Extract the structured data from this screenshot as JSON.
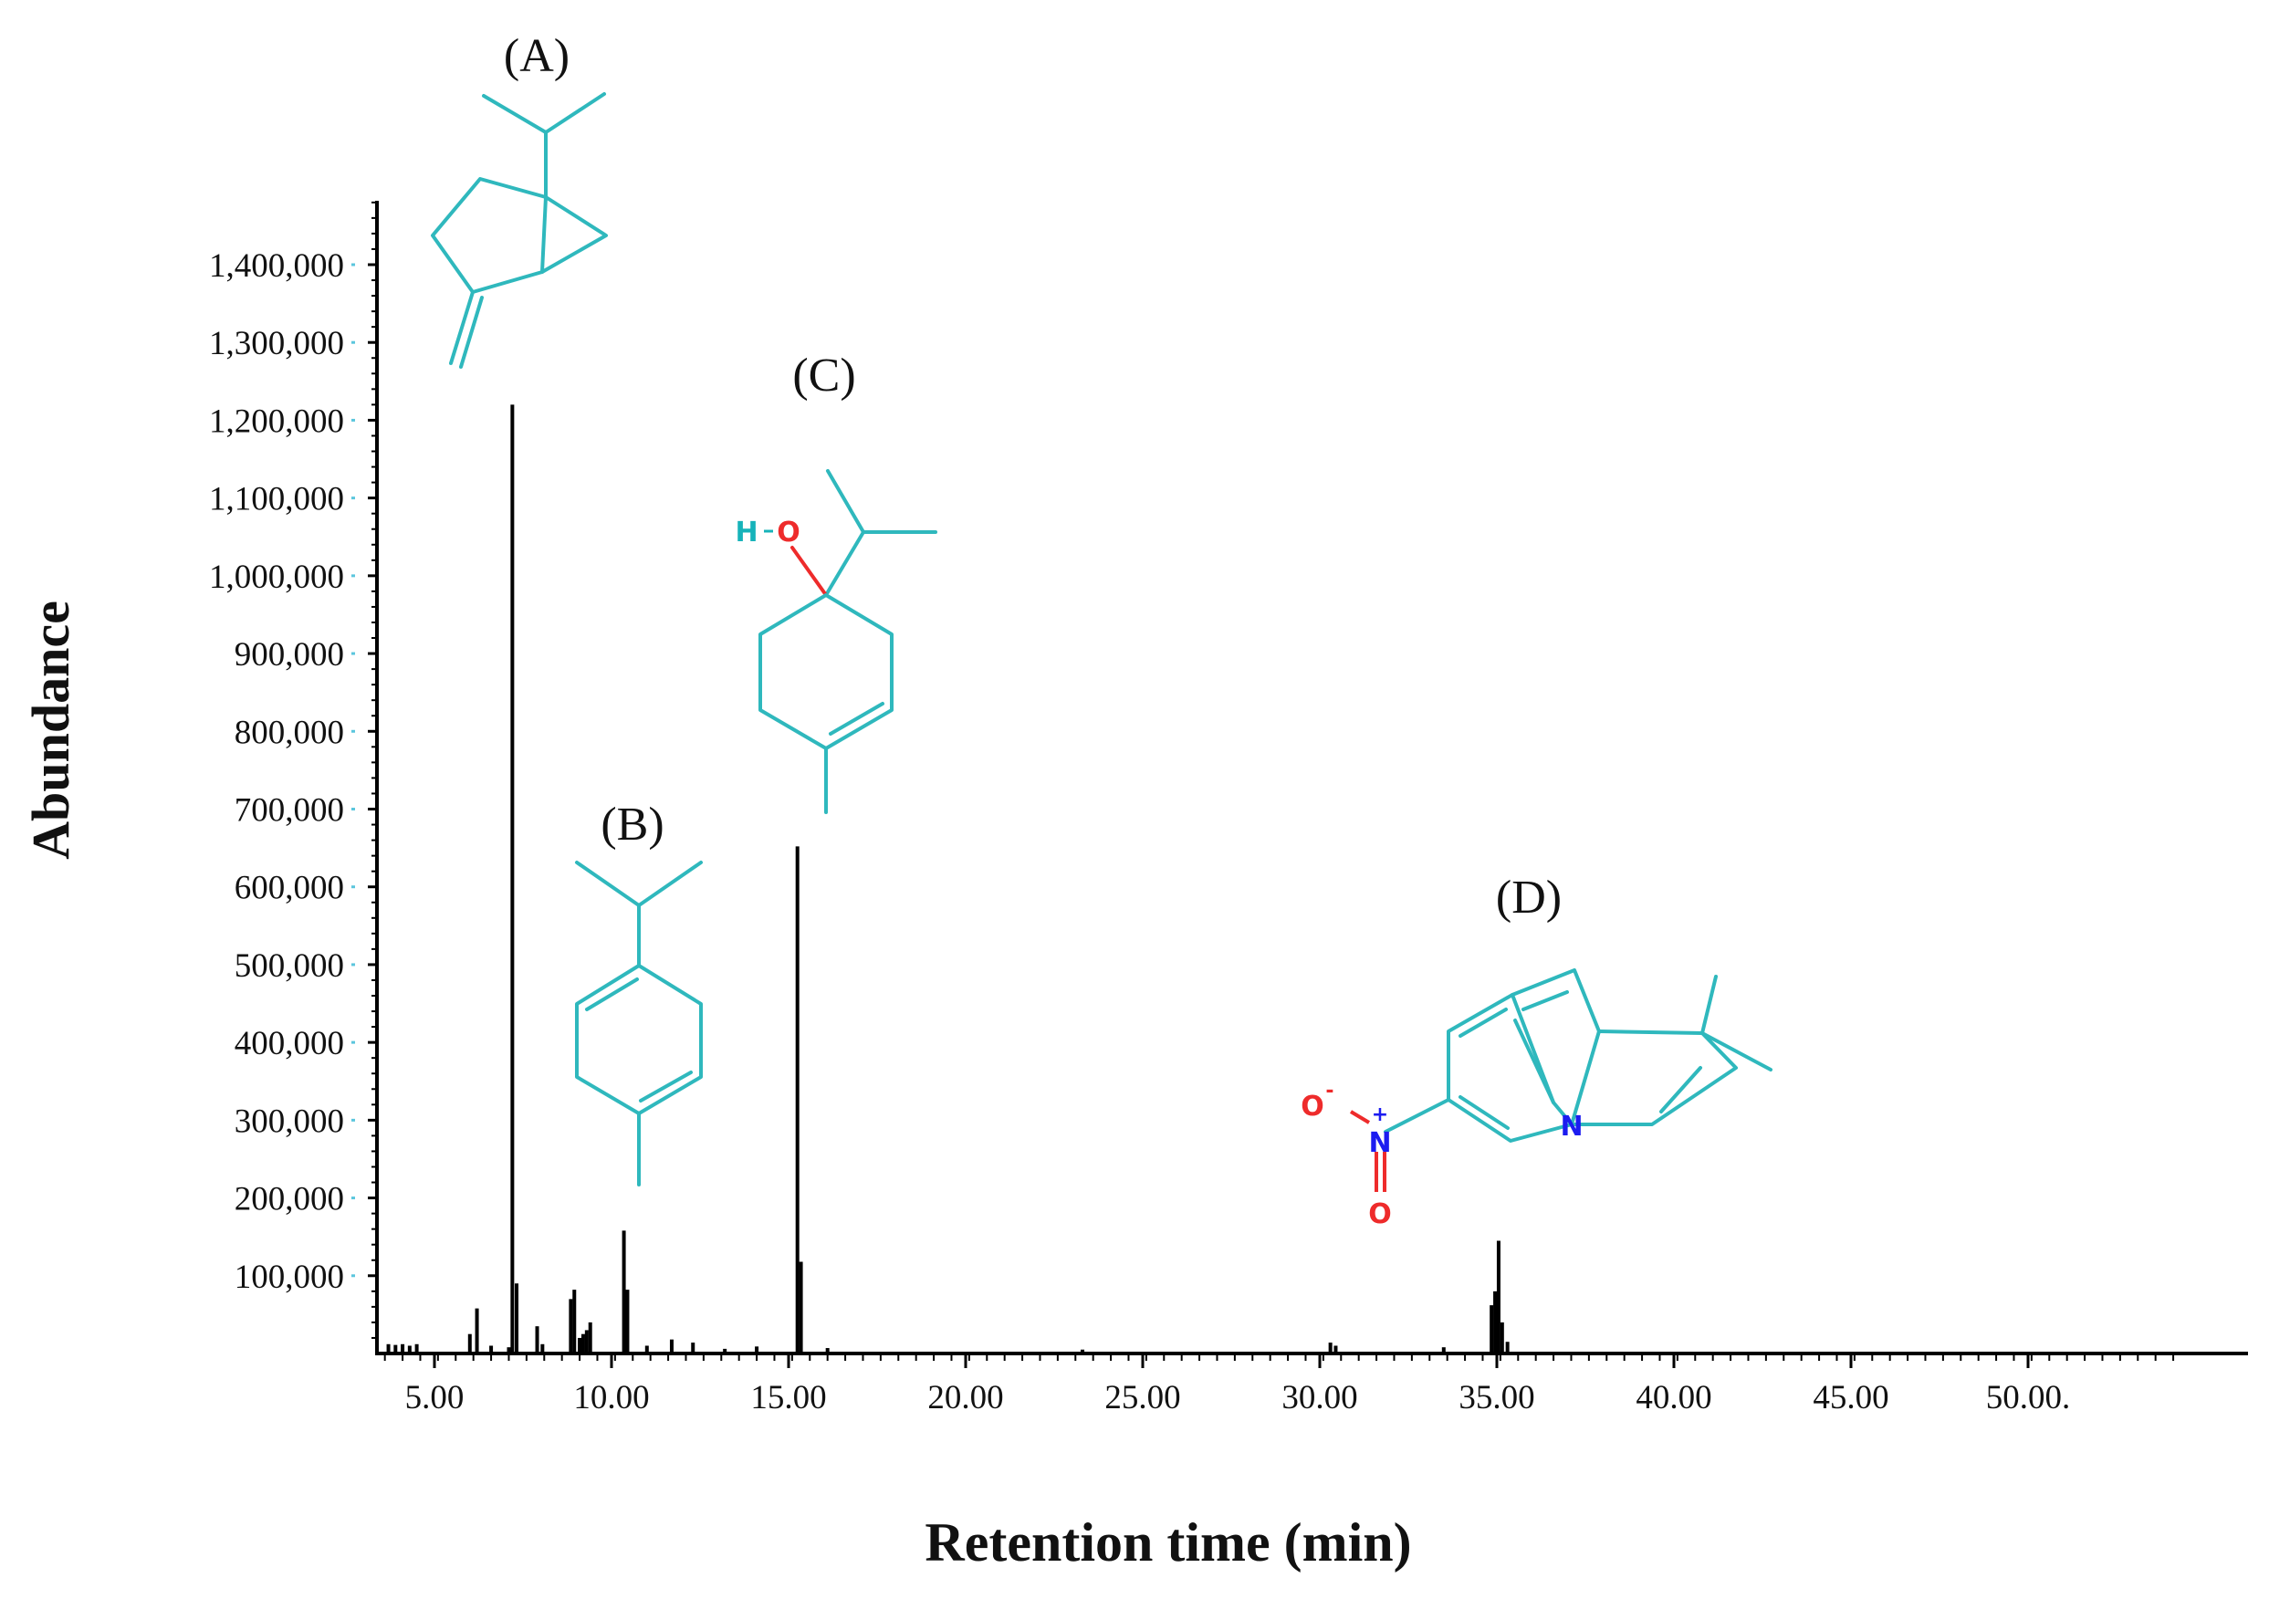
{
  "chart_data": {
    "type": "line",
    "xlabel": "Retention time (min)",
    "ylabel": "Abundance",
    "xlim": [
      3.5,
      54.5
    ],
    "ylim": [
      0,
      1490000
    ],
    "x_ticks": [
      5,
      10,
      15,
      20,
      25,
      30,
      35,
      40,
      45,
      50
    ],
    "x_tick_labels": [
      "5.00",
      "10.00",
      "15.00",
      "20.00",
      "25.00",
      "30.00",
      "35.00",
      "40.00",
      "45.00",
      "50.00."
    ],
    "y_ticks": [
      100000,
      200000,
      300000,
      400000,
      500000,
      600000,
      700000,
      800000,
      900000,
      1000000,
      1100000,
      1200000,
      1300000,
      1400000
    ],
    "y_tick_labels": [
      "100,000",
      "200,000",
      "300,000",
      "400,000",
      "500,000",
      "600,000",
      "700,000",
      "800,000",
      "900,000",
      "1,000,000",
      "1,100,000",
      "1,200,000",
      "1,300,000",
      "1,400,000"
    ],
    "peaks": [
      {
        "x": 3.7,
        "y": 12000
      },
      {
        "x": 3.9,
        "y": 11000
      },
      {
        "x": 4.1,
        "y": 12000
      },
      {
        "x": 4.3,
        "y": 10000
      },
      {
        "x": 4.5,
        "y": 12000
      },
      {
        "x": 6.0,
        "y": 25000
      },
      {
        "x": 6.2,
        "y": 58000
      },
      {
        "x": 6.6,
        "y": 10000
      },
      {
        "x": 7.1,
        "y": 8000
      },
      {
        "x": 7.2,
        "y": 1220000
      },
      {
        "x": 7.32,
        "y": 90000
      },
      {
        "x": 7.9,
        "y": 35000
      },
      {
        "x": 8.05,
        "y": 12000
      },
      {
        "x": 8.85,
        "y": 70000
      },
      {
        "x": 8.95,
        "y": 82000
      },
      {
        "x": 9.1,
        "y": 20000
      },
      {
        "x": 9.2,
        "y": 25000
      },
      {
        "x": 9.3,
        "y": 30000
      },
      {
        "x": 9.4,
        "y": 40000
      },
      {
        "x": 10.35,
        "y": 158000
      },
      {
        "x": 10.45,
        "y": 82000
      },
      {
        "x": 11.0,
        "y": 10000
      },
      {
        "x": 11.7,
        "y": 18000
      },
      {
        "x": 12.3,
        "y": 14000
      },
      {
        "x": 13.2,
        "y": 6000
      },
      {
        "x": 14.1,
        "y": 9000
      },
      {
        "x": 15.25,
        "y": 652000
      },
      {
        "x": 15.35,
        "y": 118000
      },
      {
        "x": 16.1,
        "y": 7000
      },
      {
        "x": 23.3,
        "y": 5000
      },
      {
        "x": 30.3,
        "y": 14000
      },
      {
        "x": 30.45,
        "y": 10000
      },
      {
        "x": 33.5,
        "y": 8000
      },
      {
        "x": 34.85,
        "y": 62000
      },
      {
        "x": 34.95,
        "y": 80000
      },
      {
        "x": 35.05,
        "y": 145000
      },
      {
        "x": 35.15,
        "y": 40000
      },
      {
        "x": 35.3,
        "y": 15000
      }
    ],
    "annotations": [
      "(A)",
      "(B)",
      "(C)",
      "(D)"
    ]
  },
  "structures": {
    "c_hydroxyl_h": "H",
    "c_hydroxyl_o": "O",
    "d_nitro_o_minus": "O",
    "d_minus_sign": "-",
    "d_nitro_n": "N",
    "d_plus_sign": "+",
    "d_nitro_o": "O",
    "d_ring_n": "N"
  },
  "colors": {
    "structure": "#2fb8bd",
    "oxygen": "#ee2b2b",
    "nitrogen": "#1c1cf0",
    "trace": "#000000"
  }
}
